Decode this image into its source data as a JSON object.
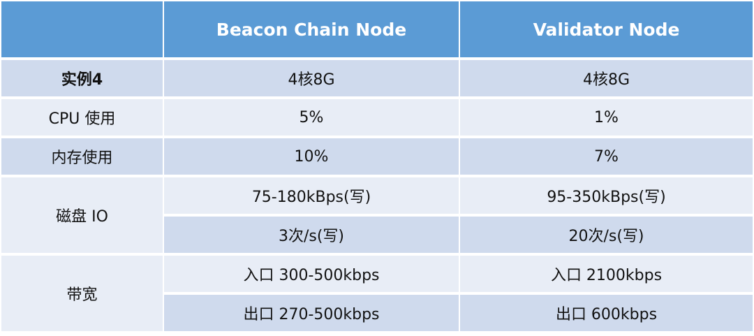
{
  "table": {
    "header": [
      "Beacon Chain Node",
      "Validator Node"
    ],
    "rows": [
      {
        "label": "实例4",
        "cells": [
          [
            "4核8G",
            "4核8G"
          ]
        ]
      },
      {
        "label": "CPU 使用",
        "cells": [
          [
            "5%",
            "1%"
          ]
        ]
      },
      {
        "label": "内存使用",
        "cells": [
          [
            "10%",
            "7%"
          ]
        ]
      },
      {
        "label": "磁盘 IO",
        "cells": [
          [
            "75-180kBps(写)",
            "95-350kBps(写)"
          ],
          [
            "3次/s(写)",
            "20次/s(写)"
          ]
        ]
      },
      {
        "label": "带宽",
        "cells": [
          [
            "入口 300-500kbps",
            "入口 2100kbps"
          ],
          [
            "出口 270-500kbps",
            "出口 600kbps"
          ]
        ]
      }
    ]
  }
}
